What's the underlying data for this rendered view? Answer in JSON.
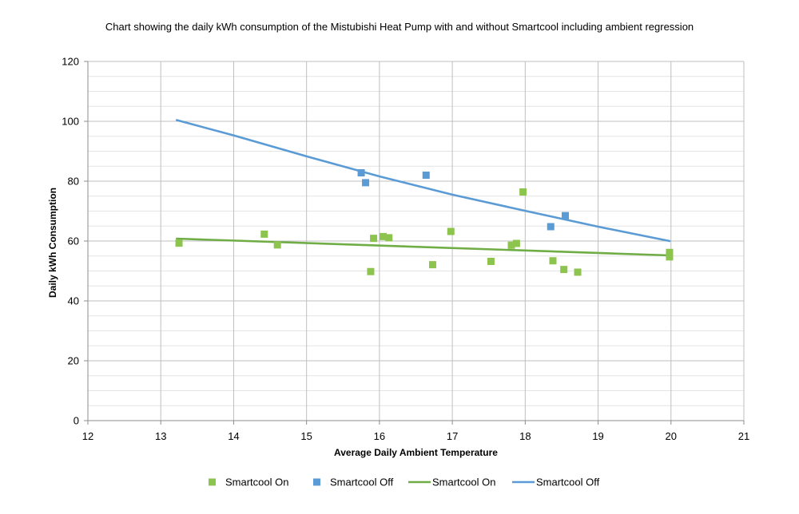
{
  "chart_data": {
    "type": "scatter",
    "title": "Chart showing the daily kWh consumption of the Mistubishi Heat Pump with and without Smartcool including ambient regression",
    "xlabel": "Average Daily Ambient Temperature",
    "ylabel": "Daily kWh Consumption",
    "xlim": [
      12,
      21
    ],
    "ylim": [
      0,
      120
    ],
    "x_ticks": [
      12,
      13,
      14,
      15,
      16,
      17,
      18,
      19,
      20,
      21
    ],
    "y_ticks": [
      0,
      20,
      40,
      60,
      80,
      100,
      120
    ],
    "y_minor_step": 5,
    "grid": true,
    "legend_position": "bottom",
    "series": [
      {
        "name": "Smartcool On",
        "kind": "scatter",
        "color": "#8dc44e",
        "points": [
          {
            "x": 13.25,
            "y": 59.3
          },
          {
            "x": 14.42,
            "y": 62.3
          },
          {
            "x": 14.6,
            "y": 58.7
          },
          {
            "x": 15.88,
            "y": 49.8
          },
          {
            "x": 15.92,
            "y": 60.9
          },
          {
            "x": 16.05,
            "y": 61.5
          },
          {
            "x": 16.13,
            "y": 61.1
          },
          {
            "x": 16.73,
            "y": 52.1
          },
          {
            "x": 16.98,
            "y": 63.2
          },
          {
            "x": 17.53,
            "y": 53.2
          },
          {
            "x": 17.81,
            "y": 58.6
          },
          {
            "x": 17.88,
            "y": 59.2
          },
          {
            "x": 17.97,
            "y": 76.4
          },
          {
            "x": 18.38,
            "y": 53.4
          },
          {
            "x": 18.53,
            "y": 50.5
          },
          {
            "x": 18.72,
            "y": 49.6
          },
          {
            "x": 19.98,
            "y": 56.2
          },
          {
            "x": 19.98,
            "y": 54.7
          }
        ]
      },
      {
        "name": "Smartcool Off",
        "kind": "scatter",
        "color": "#5b9bd5",
        "points": [
          {
            "x": 15.75,
            "y": 82.8
          },
          {
            "x": 15.81,
            "y": 79.5
          },
          {
            "x": 16.64,
            "y": 82.0
          },
          {
            "x": 18.35,
            "y": 64.8
          },
          {
            "x": 18.55,
            "y": 68.5
          }
        ]
      },
      {
        "name": "Smartcool On",
        "kind": "line",
        "color": "#70ad47",
        "points": [
          {
            "x": 13.22,
            "y": 60.8
          },
          {
            "x": 19.98,
            "y": 55.2
          }
        ]
      },
      {
        "name": "Smartcool Off",
        "kind": "line",
        "color": "#5b9bd5",
        "points": [
          {
            "x": 13.22,
            "y": 100.4
          },
          {
            "x": 14.0,
            "y": 95.3
          },
          {
            "x": 15.0,
            "y": 88.3
          },
          {
            "x": 16.0,
            "y": 81.6
          },
          {
            "x": 17.0,
            "y": 75.5
          },
          {
            "x": 18.0,
            "y": 70.1
          },
          {
            "x": 19.0,
            "y": 64.8
          },
          {
            "x": 19.98,
            "y": 60.0
          }
        ]
      }
    ]
  }
}
